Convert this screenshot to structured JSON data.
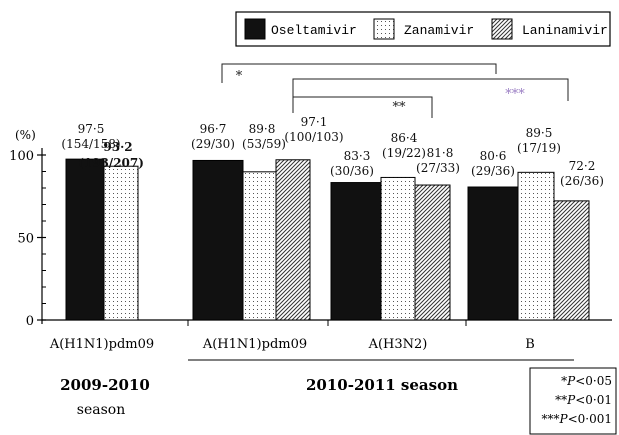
{
  "chart_data": {
    "type": "bar",
    "ylabel": "(%)",
    "ylim": [
      0,
      100
    ],
    "yticks": [
      0,
      50,
      100
    ],
    "legend": {
      "placement": "top-right",
      "items": [
        {
          "name": "Oseltamivir",
          "pattern": "solid"
        },
        {
          "name": "Zanamivir",
          "pattern": "dots"
        },
        {
          "name": "Laninamivir",
          "pattern": "hatch"
        }
      ]
    },
    "groups": [
      {
        "label": "A(H1N1)pdm09",
        "bars": [
          {
            "series": "Oseltamivir",
            "value": 97.5,
            "pct_label": "97·5",
            "count_label": "(154/158)"
          },
          {
            "series": "Zanamivir",
            "value": 93.2,
            "pct_label": "93·2",
            "count_label": "(193/207)"
          }
        ]
      },
      {
        "label": "A(H1N1)pdm09",
        "bars": [
          {
            "series": "Oseltamivir",
            "value": 96.7,
            "pct_label": "96·7",
            "count_label": "(29/30)"
          },
          {
            "series": "Zanamivir",
            "value": 89.8,
            "pct_label": "89·8",
            "count_label": "(53/59)"
          },
          {
            "series": "Laninamivir",
            "value": 97.1,
            "pct_label": "97·1",
            "count_label": "(100/103)"
          }
        ]
      },
      {
        "label": "A(H3N2)",
        "bars": [
          {
            "series": "Oseltamivir",
            "value": 83.3,
            "pct_label": "83·3",
            "count_label": "(30/36)"
          },
          {
            "series": "Zanamivir",
            "value": 86.4,
            "pct_label": "86·4",
            "count_label": "(19/22)"
          },
          {
            "series": "Laninamivir",
            "value": 81.8,
            "pct_label": "81·8",
            "count_label": "(27/33)"
          }
        ]
      },
      {
        "label": "B",
        "bars": [
          {
            "series": "Oseltamivir",
            "value": 80.6,
            "pct_label": "80·6",
            "count_label": "(29/36)"
          },
          {
            "series": "Zanamivir",
            "value": 89.5,
            "pct_label": "89·5",
            "count_label": "(17/19)"
          },
          {
            "series": "Laninamivir",
            "value": 72.2,
            "pct_label": "72·2",
            "count_label": "(26/36)"
          }
        ]
      }
    ],
    "seasons": [
      {
        "line1": "2009-2010",
        "line2": "season"
      },
      {
        "line1": "2010-2011 season",
        "line2": ""
      }
    ],
    "significance_brackets": [
      {
        "label": "*",
        "color": "#222222"
      },
      {
        "label": "***",
        "color": "#9b7fc4"
      },
      {
        "label": "**",
        "color": "#222222"
      }
    ],
    "significance_key": [
      {
        "stars": "*",
        "p": "P",
        "rest": "<0·05"
      },
      {
        "stars": "**",
        "p": "P",
        "rest": "<0·01"
      },
      {
        "stars": "***",
        "p": "P",
        "rest": "<0·001"
      }
    ]
  }
}
